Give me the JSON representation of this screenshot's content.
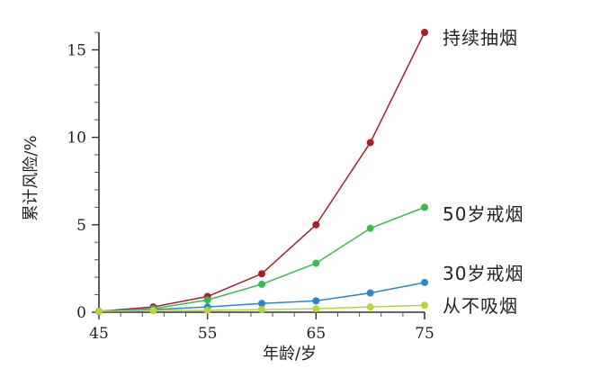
{
  "chart_data": {
    "type": "line",
    "xlabel": "年龄/岁",
    "ylabel": "累计风险/%",
    "xlim": [
      45,
      75
    ],
    "ylim": [
      0,
      16
    ],
    "x_ticks": [
      "45",
      "55",
      "65",
      "75"
    ],
    "y_ticks": [
      "0",
      "5",
      "10",
      "15"
    ],
    "x": [
      45,
      50,
      55,
      60,
      65,
      70,
      75
    ],
    "grid": false,
    "series": [
      {
        "name": "持续抽烟",
        "color": "#a8202a",
        "values": [
          0.05,
          0.3,
          0.9,
          2.2,
          5.0,
          9.7,
          16.0
        ]
      },
      {
        "name": "50岁戒烟",
        "color": "#3cba4e",
        "values": [
          0.05,
          0.2,
          0.7,
          1.6,
          2.8,
          4.8,
          6.0
        ]
      },
      {
        "name": "30岁戒烟",
        "color": "#2f86c4",
        "values": [
          0.05,
          0.15,
          0.3,
          0.5,
          0.65,
          1.1,
          1.7
        ]
      },
      {
        "name": "从不吸烟",
        "color": "#b6d43a",
        "values": [
          0.05,
          0.1,
          0.1,
          0.15,
          0.2,
          0.3,
          0.4
        ]
      }
    ]
  }
}
